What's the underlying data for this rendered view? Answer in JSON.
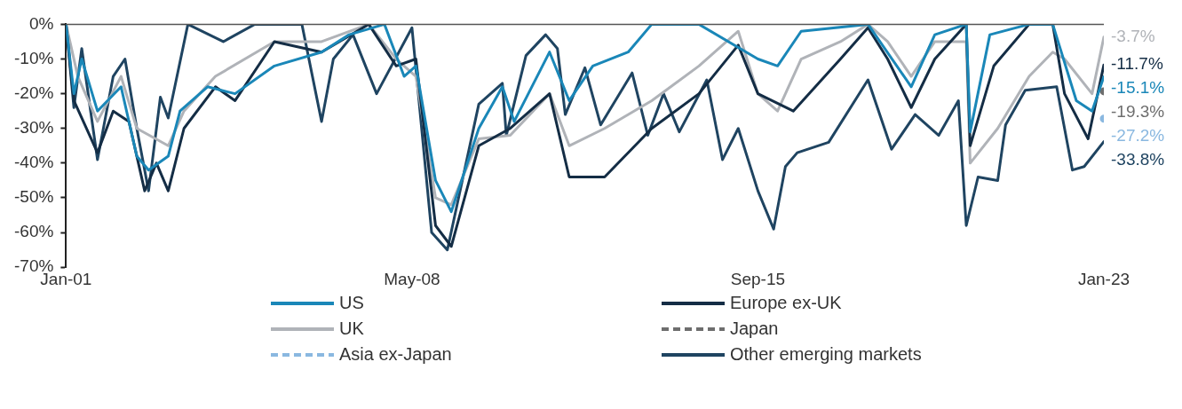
{
  "chart_data": {
    "type": "line",
    "ylim": [
      -70,
      0
    ],
    "yticks": [
      {
        "value": 0,
        "label": "0%"
      },
      {
        "value": -10,
        "label": "-10%"
      },
      {
        "value": -20,
        "label": "-20%"
      },
      {
        "value": -30,
        "label": "-30%"
      },
      {
        "value": -40,
        "label": "-40%"
      },
      {
        "value": -50,
        "label": "-50%"
      },
      {
        "value": -60,
        "label": "-60%"
      },
      {
        "value": -70,
        "label": "-70%"
      }
    ],
    "xlim": [
      "2001-01",
      "2023-01"
    ],
    "xticks": [
      {
        "value": "2001-01",
        "label": "Jan-01"
      },
      {
        "value": "2008-05",
        "label": "May-08"
      },
      {
        "value": "2015-09",
        "label": "Sep-15"
      },
      {
        "value": "2023-01",
        "label": "Jan-23"
      }
    ],
    "grid": false,
    "legend": "bottom",
    "marker": "none",
    "line_style": "solid",
    "ref_lines": [
      {
        "axis": "y",
        "value": 0,
        "color": "#555555"
      }
    ],
    "series": [
      {
        "name": "US",
        "color": "#1a87b8",
        "x": [
          "2001-01",
          "2001-03",
          "2001-05",
          "2001-09",
          "2002-03",
          "2002-07",
          "2002-10",
          "2003-03",
          "2003-06",
          "2004-01",
          "2004-08",
          "2005-06",
          "2006-06",
          "2007-01",
          "2007-10",
          "2008-03",
          "2008-06",
          "2008-11",
          "2009-03",
          "2009-10",
          "2010-04",
          "2010-07",
          "2011-04",
          "2011-09",
          "2012-03",
          "2012-12",
          "2013-06",
          "2014-06",
          "2015-09",
          "2016-02",
          "2016-08",
          "2018-01",
          "2018-12",
          "2019-06",
          "2020-02",
          "2020-03",
          "2020-08",
          "2021-06",
          "2021-12",
          "2022-06",
          "2022-10",
          "2023-01"
        ],
        "values": [
          0,
          -20,
          -10,
          -25,
          -18,
          -38,
          -42,
          -38,
          -25,
          -18,
          -20,
          -12,
          -8,
          -3,
          0,
          -15,
          -12,
          -45,
          -54,
          -30,
          -18,
          -28,
          -8,
          -22,
          -12,
          -8,
          0,
          0,
          -10,
          -12,
          -2,
          0,
          -18,
          -3,
          0,
          -31,
          -3,
          0,
          0,
          -22,
          -25,
          -15.1
        ],
        "value_labels": [
          null,
          null,
          null,
          null,
          null,
          null,
          null,
          null,
          null,
          null,
          null,
          null,
          null,
          null,
          null,
          null,
          null,
          null,
          null,
          null,
          null,
          null,
          null,
          null,
          null,
          null,
          null,
          null,
          null,
          null,
          null,
          null,
          null,
          null,
          null,
          null,
          null,
          null,
          null,
          null,
          null,
          "-15.1%"
        ]
      },
      {
        "name": "Europe ex-UK",
        "color": "#142d45",
        "x": [
          "2001-01",
          "2001-03",
          "2001-09",
          "2002-01",
          "2002-05",
          "2002-09",
          "2002-12",
          "2003-03",
          "2003-07",
          "2004-03",
          "2004-08",
          "2005-06",
          "2006-06",
          "2007-06",
          "2008-01",
          "2008-06",
          "2008-11",
          "2009-03",
          "2009-10",
          "2010-06",
          "2011-04",
          "2011-09",
          "2012-06",
          "2013-06",
          "2014-06",
          "2015-04",
          "2015-09",
          "2016-06",
          "2017-06",
          "2018-01",
          "2018-06",
          "2018-12",
          "2019-06",
          "2020-02",
          "2020-03",
          "2020-09",
          "2021-06",
          "2021-12",
          "2022-03",
          "2022-09",
          "2023-01"
        ],
        "values": [
          0,
          -22,
          -37,
          -25,
          -28,
          -48,
          -40,
          -48,
          -30,
          -18,
          -22,
          -5,
          -8,
          0,
          -12,
          -10,
          -58,
          -64,
          -35,
          -30,
          -20,
          -44,
          -44,
          -30,
          -20,
          -6,
          -20,
          -25,
          -10,
          -1,
          -10,
          -24,
          -10,
          0,
          -35,
          -12,
          0,
          0,
          -20,
          -33,
          -11.7
        ],
        "value_labels": [
          null,
          null,
          null,
          null,
          null,
          null,
          null,
          null,
          null,
          null,
          null,
          null,
          null,
          null,
          null,
          null,
          null,
          null,
          null,
          null,
          null,
          null,
          null,
          null,
          null,
          null,
          null,
          null,
          null,
          null,
          null,
          null,
          null,
          null,
          null,
          null,
          null,
          null,
          null,
          null,
          "-11.7%"
        ]
      },
      {
        "name": "UK",
        "color": "#b0b3b8",
        "x": [
          "2001-01",
          "2001-04",
          "2001-09",
          "2002-03",
          "2002-07",
          "2003-03",
          "2003-07",
          "2004-03",
          "2005-06",
          "2006-06",
          "2007-06",
          "2008-01",
          "2008-06",
          "2008-11",
          "2009-03",
          "2009-10",
          "2010-06",
          "2011-04",
          "2011-09",
          "2012-06",
          "2013-06",
          "2014-06",
          "2015-04",
          "2015-09",
          "2016-02",
          "2016-08",
          "2017-06",
          "2018-01",
          "2018-06",
          "2018-12",
          "2019-06",
          "2020-02",
          "2020-03",
          "2020-10",
          "2021-06",
          "2021-12",
          "2022-03",
          "2022-10",
          "2023-01"
        ],
        "values": [
          0,
          -15,
          -28,
          -15,
          -30,
          -35,
          -25,
          -15,
          -5,
          -5,
          0,
          -10,
          -15,
          -50,
          -52,
          -33,
          -32,
          -20,
          -35,
          -30,
          -22,
          -12,
          -2,
          -20,
          -25,
          -10,
          -5,
          0,
          -5,
          -15,
          -5,
          -5,
          -40,
          -30,
          -15,
          -8,
          -10,
          -20,
          -3.7
        ],
        "value_labels": [
          null,
          null,
          null,
          null,
          null,
          null,
          null,
          null,
          null,
          null,
          null,
          null,
          null,
          null,
          null,
          null,
          null,
          null,
          null,
          null,
          null,
          null,
          null,
          null,
          null,
          null,
          null,
          null,
          null,
          null,
          null,
          null,
          null,
          null,
          null,
          null,
          null,
          null,
          "-3.7%"
        ]
      },
      {
        "name": "Japan",
        "color": "#6e6e6e",
        "line_style": "dashed",
        "marker": "circle",
        "x": [
          "2023-01"
        ],
        "values": [
          -19.3
        ],
        "value_labels": [
          "-19.3%"
        ]
      },
      {
        "name": "Asia ex-Japan",
        "color": "#8ab8e0",
        "line_style": "dashed",
        "marker": "circle",
        "x": [
          "2023-01"
        ],
        "values": [
          -27.2
        ],
        "value_labels": [
          "-27.2%"
        ]
      },
      {
        "name": "Other emerging markets",
        "color": "#1f4461",
        "x": [
          "2001-01",
          "2001-03",
          "2001-05",
          "2001-09",
          "2002-01",
          "2002-04",
          "2002-07",
          "2002-10",
          "2003-01",
          "2003-03",
          "2003-08",
          "2004-05",
          "2005-01",
          "2006-01",
          "2006-06",
          "2006-09",
          "2007-02",
          "2007-08",
          "2008-05",
          "2008-10",
          "2009-02",
          "2009-10",
          "2010-04",
          "2010-05",
          "2010-10",
          "2011-03",
          "2011-06",
          "2011-08",
          "2012-01",
          "2012-05",
          "2013-01",
          "2013-05",
          "2013-09",
          "2014-01",
          "2014-08",
          "2014-12",
          "2015-04",
          "2015-09",
          "2016-01",
          "2016-04",
          "2016-07",
          "2017-03",
          "2018-01",
          "2018-07",
          "2019-01",
          "2019-07",
          "2019-12",
          "2020-02",
          "2020-05",
          "2020-10",
          "2020-12",
          "2021-05",
          "2022-01",
          "2022-05",
          "2022-08",
          "2023-01"
        ],
        "values": [
          0,
          -24,
          -7,
          -39,
          -15,
          -10,
          -30,
          -48,
          -21,
          -27,
          0,
          -5,
          0,
          0,
          -28,
          -10,
          -3,
          -20,
          -1,
          -60,
          -65,
          -23,
          -17,
          -32,
          -9,
          -3,
          -7,
          -26,
          -12.5,
          -29,
          -14,
          -32,
          -20,
          -31,
          -16,
          -39,
          -30,
          -48,
          -59,
          -41,
          -37,
          -34,
          -16,
          -36,
          -26,
          -32,
          -22,
          -58,
          -44,
          -45,
          -29,
          -19,
          -18,
          -42,
          -41,
          -33.8
        ],
        "value_labels": [
          null,
          null,
          null,
          null,
          null,
          null,
          null,
          null,
          null,
          null,
          null,
          null,
          null,
          null,
          null,
          null,
          null,
          null,
          null,
          null,
          null,
          null,
          null,
          null,
          null,
          null,
          null,
          null,
          null,
          null,
          null,
          null,
          null,
          null,
          null,
          null,
          null,
          null,
          null,
          null,
          null,
          null,
          null,
          null,
          null,
          null,
          null,
          null,
          null,
          null,
          null,
          null,
          null,
          null,
          null,
          "-33.8%"
        ]
      }
    ]
  }
}
